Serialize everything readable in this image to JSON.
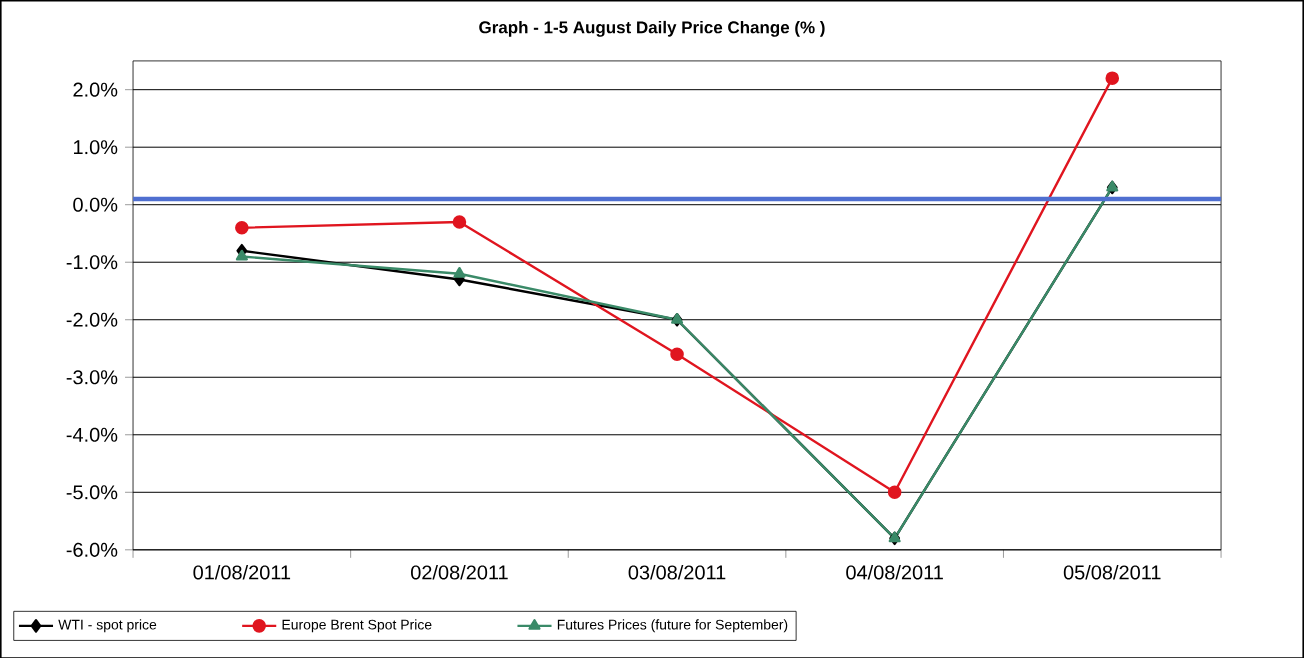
{
  "chart_data": {
    "type": "line",
    "title": "Graph -  1-5 August Daily Price Change (% )",
    "categories": [
      "01/08/2011",
      "02/08/2011",
      "03/08/2011",
      "04/08/2011",
      "05/08/2011"
    ],
    "series": [
      {
        "name": "WTI - spot price",
        "color": "#000000",
        "marker": "diamond",
        "values": [
          -0.8,
          -1.3,
          -2.0,
          -5.8,
          0.3
        ]
      },
      {
        "name": "Europe Brent Spot Price",
        "color": "#e0151f",
        "marker": "circle",
        "values": [
          -0.4,
          -0.3,
          -2.6,
          -5.0,
          2.2
        ]
      },
      {
        "name": "Futures Prices (future for September)",
        "color": "#3a8a68",
        "marker": "triangle",
        "values": [
          -0.9,
          -1.2,
          -2.0,
          -5.8,
          0.3
        ]
      }
    ],
    "ylim": [
      -6,
      2.5
    ],
    "yticks": [
      {
        "value": -6,
        "label": "-6.0%"
      },
      {
        "value": -5,
        "label": "-5.0%"
      },
      {
        "value": -4,
        "label": "-4.0%"
      },
      {
        "value": -3,
        "label": "-3.0%"
      },
      {
        "value": -2,
        "label": "-2.0%"
      },
      {
        "value": -1,
        "label": "-1.0%"
      },
      {
        "value": 0,
        "label": "0.0%"
      },
      {
        "value": 1,
        "label": "1.0%"
      },
      {
        "value": 2,
        "label": "2.0%"
      }
    ],
    "ref_lines": [
      {
        "axis": "y",
        "value": 0.1,
        "color": "#4f6fd0"
      }
    ],
    "grid": "y",
    "legend": "bottom",
    "line_style": "solid"
  }
}
